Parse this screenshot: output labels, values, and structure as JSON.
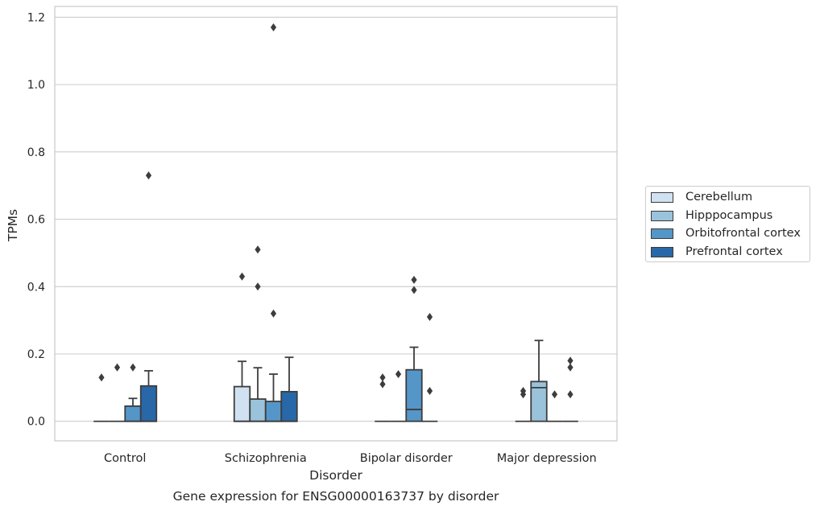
{
  "caption": "Gene expression for ENSG00000163737 by disorder",
  "chart_data": {
    "type": "boxplot",
    "xlabel": "Disorder",
    "ylabel": "TPMs",
    "ylim": [
      -0.058,
      1.232
    ],
    "yticks": [
      "0.0",
      "0.2",
      "0.4",
      "0.6",
      "0.8",
      "1.0",
      "1.2"
    ],
    "grid": "horizontal",
    "legend_position": "right",
    "categories": [
      "Control",
      "Schizophrenia",
      "Bipolar disorder",
      "Major depression"
    ],
    "series": [
      {
        "name": "Cerebellum",
        "color": "#d0e1f2",
        "boxes": [
          {
            "q1": 0,
            "median": 0,
            "q3": 0,
            "whisker_low": 0,
            "whisker_high": 0,
            "outliers": [
              0.13
            ]
          },
          {
            "q1": 0,
            "median": 0,
            "q3": 0.103,
            "whisker_low": 0,
            "whisker_high": 0.178,
            "outliers": [
              0.43
            ]
          },
          {
            "q1": 0,
            "median": 0,
            "q3": 0,
            "whisker_low": 0,
            "whisker_high": 0,
            "outliers": [
              0.13,
              0.11
            ]
          },
          {
            "q1": 0,
            "median": 0,
            "q3": 0,
            "whisker_low": 0,
            "whisker_high": 0,
            "outliers": [
              0.09,
              0.08
            ]
          }
        ]
      },
      {
        "name": "Hipppocampus",
        "color": "#9ac3db",
        "boxes": [
          {
            "q1": 0,
            "median": 0,
            "q3": 0,
            "whisker_low": 0,
            "whisker_high": 0,
            "outliers": [
              0.16
            ]
          },
          {
            "q1": 0,
            "median": 0,
            "q3": 0.066,
            "whisker_low": 0,
            "whisker_high": 0.159,
            "outliers": [
              0.51,
              0.4
            ]
          },
          {
            "q1": 0,
            "median": 0,
            "q3": 0,
            "whisker_low": 0,
            "whisker_high": 0,
            "outliers": [
              0.14
            ]
          },
          {
            "q1": 0,
            "median": 0.1,
            "q3": 0.118,
            "whisker_low": 0,
            "whisker_high": 0.24,
            "outliers": []
          }
        ]
      },
      {
        "name": "Orbitofrontal cortex",
        "color": "#5596c8",
        "boxes": [
          {
            "q1": 0,
            "median": 0,
            "q3": 0.045,
            "whisker_low": 0,
            "whisker_high": 0.068,
            "outliers": [
              0.16
            ]
          },
          {
            "q1": 0,
            "median": 0,
            "q3": 0.059,
            "whisker_low": 0,
            "whisker_high": 0.14,
            "outliers": [
              1.17,
              0.32
            ]
          },
          {
            "q1": 0,
            "median": 0.035,
            "q3": 0.153,
            "whisker_low": 0,
            "whisker_high": 0.22,
            "outliers": [
              0.42,
              0.39
            ]
          },
          {
            "q1": 0,
            "median": 0,
            "q3": 0,
            "whisker_low": 0,
            "whisker_high": 0,
            "outliers": [
              0.08
            ]
          }
        ]
      },
      {
        "name": "Prefrontal cortex",
        "color": "#2868a8",
        "boxes": [
          {
            "q1": 0,
            "median": 0,
            "q3": 0.105,
            "whisker_low": 0,
            "whisker_high": 0.15,
            "outliers": [
              0.73
            ]
          },
          {
            "q1": 0,
            "median": 0,
            "q3": 0.088,
            "whisker_low": 0,
            "whisker_high": 0.19,
            "outliers": []
          },
          {
            "q1": 0,
            "median": 0,
            "q3": 0,
            "whisker_low": 0,
            "whisker_high": 0,
            "outliers": [
              0.31,
              0.09
            ]
          },
          {
            "q1": 0,
            "median": 0,
            "q3": 0,
            "whisker_low": 0,
            "whisker_high": 0,
            "outliers": [
              0.18,
              0.16,
              0.08
            ]
          }
        ]
      }
    ]
  }
}
